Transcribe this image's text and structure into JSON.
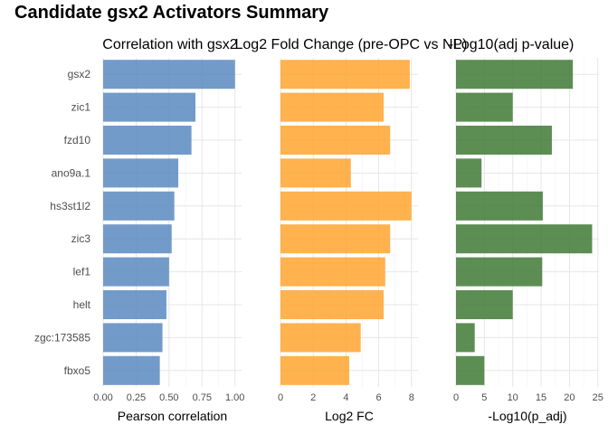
{
  "figure_title": "Candidate gsx2 Activators Summary",
  "chart_data": [
    {
      "type": "bar",
      "orientation": "horizontal",
      "title": "Correlation with gsx2",
      "xlabel": "Pearson correlation",
      "categories": [
        "gsx2",
        "zic1",
        "fzd10",
        "ano9a.1",
        "hs3st1l2",
        "zic3",
        "lef1",
        "helt",
        "zgc:173585",
        "fbxo5"
      ],
      "values": [
        1.0,
        0.7,
        0.67,
        0.57,
        0.54,
        0.52,
        0.5,
        0.48,
        0.45,
        0.43
      ],
      "xlim": [
        0,
        1.05
      ],
      "xticks": [
        0,
        0.25,
        0.5,
        0.75,
        1.0
      ],
      "xtick_labels": [
        "0.00",
        "0.25",
        "0.50",
        "0.75",
        "1.00"
      ],
      "color": "#5b8ac0",
      "grid": true
    },
    {
      "type": "bar",
      "orientation": "horizontal",
      "title": "Log2 Fold Change (pre-OPC vs NP)",
      "xlabel": "Log2 FC",
      "categories": [
        "gsx2",
        "zic1",
        "fzd10",
        "ano9a.1",
        "hs3st1l2",
        "zic3",
        "lef1",
        "helt",
        "zgc:173585",
        "fbxo5"
      ],
      "values": [
        7.9,
        6.3,
        6.7,
        4.3,
        8.0,
        6.7,
        6.4,
        6.3,
        4.9,
        4.2
      ],
      "xlim": [
        0,
        8.4
      ],
      "xticks": [
        0,
        2,
        4,
        6,
        8
      ],
      "xtick_labels": [
        "0",
        "2",
        "4",
        "6",
        "8"
      ],
      "color": "#ffa52f",
      "grid": true
    },
    {
      "type": "bar",
      "orientation": "horizontal",
      "title": "-Log10(adj p-value)",
      "xlabel": "-Log10(p_adj)",
      "categories": [
        "gsx2",
        "zic1",
        "fzd10",
        "ano9a.1",
        "hs3st1l2",
        "zic3",
        "lef1",
        "helt",
        "zgc:173585",
        "fbxo5"
      ],
      "values": [
        20.6,
        10.0,
        16.9,
        4.5,
        15.3,
        24.0,
        15.2,
        10.0,
        3.3,
        5.0
      ],
      "xlim": [
        0,
        25.2
      ],
      "xticks": [
        0,
        5,
        10,
        15,
        20,
        25
      ],
      "xtick_labels": [
        "0",
        "5",
        "10",
        "15",
        "20",
        "25"
      ],
      "color": "#3f7a35",
      "grid": true
    }
  ]
}
